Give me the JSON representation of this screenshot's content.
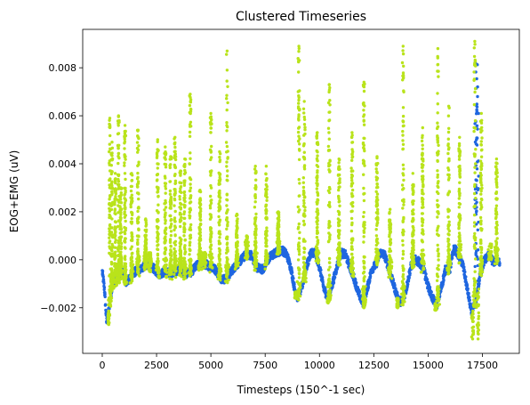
{
  "chart_data": {
    "type": "scatter",
    "title": "Clustered Timeseries",
    "xlabel": "Timesteps (150^-1 sec)",
    "ylabel": "EOG+EMG (uV)",
    "xlim": [
      -900,
      19200
    ],
    "ylim": [
      -0.0039,
      0.0096
    ],
    "xticks": [
      0,
      2500,
      5000,
      7500,
      10000,
      12500,
      15000,
      17500
    ],
    "xtick_labels": [
      "0",
      "2500",
      "5000",
      "7500",
      "10000",
      "12500",
      "15000",
      "17500"
    ],
    "yticks": [
      -0.002,
      0.0,
      0.002,
      0.004,
      0.006,
      0.008
    ],
    "ytick_labels": [
      "−0.002",
      "0.000",
      "0.002",
      "0.004",
      "0.006",
      "0.008"
    ],
    "grid": false,
    "legend": "none",
    "n_timesteps": 18300,
    "series": [
      {
        "cluster": 0,
        "color": "#1f66e0",
        "baseline": [
          [
            0,
            -0.0005
          ],
          [
            100,
            -0.0012
          ],
          [
            200,
            -0.0026
          ],
          [
            300,
            -0.0021
          ],
          [
            450,
            -0.0011
          ],
          [
            700,
            -0.0008
          ],
          [
            900,
            -0.0005
          ],
          [
            1100,
            -0.0009
          ],
          [
            1300,
            -0.0008
          ],
          [
            1500,
            -0.0005
          ],
          [
            1750,
            -0.0004
          ],
          [
            2000,
            -0.0002
          ],
          [
            2300,
            -0.0003
          ],
          [
            2600,
            -0.0006
          ],
          [
            2900,
            -0.0005
          ],
          [
            3200,
            -0.0006
          ],
          [
            3500,
            -0.0004
          ],
          [
            3800,
            -0.0006
          ],
          [
            4100,
            -0.0005
          ],
          [
            4400,
            -0.0002
          ],
          [
            4800,
            -0.0002
          ],
          [
            5200,
            -0.0004
          ],
          [
            5500,
            -0.0008
          ],
          [
            5700,
            -0.0008
          ],
          [
            6000,
            -0.0004
          ],
          [
            6300,
            -0.0001
          ],
          [
            6600,
            0.0002
          ],
          [
            6850,
            0.0002
          ],
          [
            7100,
            -0.0003
          ],
          [
            7400,
            -0.0004
          ],
          [
            7700,
            0.0001
          ],
          [
            8000,
            0.0003
          ],
          [
            8300,
            0.0004
          ],
          [
            8500,
            0.0002
          ],
          [
            8700,
            -0.0004
          ],
          [
            8850,
            -0.0012
          ],
          [
            9000,
            -0.0016
          ],
          [
            9200,
            -0.0011
          ],
          [
            9400,
            -0.0003
          ],
          [
            9600,
            0.0003
          ],
          [
            9800,
            0.0003
          ],
          [
            10000,
            -0.0003
          ],
          [
            10200,
            -0.0012
          ],
          [
            10400,
            -0.0016
          ],
          [
            10600,
            -0.001
          ],
          [
            10800,
            -0.0003
          ],
          [
            11000,
            0.0003
          ],
          [
            11200,
            0.0002
          ],
          [
            11400,
            -0.0003
          ],
          [
            11600,
            -0.0008
          ],
          [
            11800,
            -0.0014
          ],
          [
            12000,
            -0.0018
          ],
          [
            12200,
            -0.0012
          ],
          [
            12400,
            -0.0004
          ],
          [
            12600,
            -0.0002
          ],
          [
            12800,
            0.0003
          ],
          [
            13000,
            0.0002
          ],
          [
            13200,
            -0.0004
          ],
          [
            13400,
            -0.001
          ],
          [
            13600,
            -0.0016
          ],
          [
            13800,
            -0.0018
          ],
          [
            14000,
            -0.0012
          ],
          [
            14200,
            -0.0003
          ],
          [
            14400,
            0.0
          ],
          [
            14600,
            -0.0001
          ],
          [
            14800,
            -0.0004
          ],
          [
            15000,
            -0.0011
          ],
          [
            15200,
            -0.0016
          ],
          [
            15400,
            -0.0019
          ],
          [
            15600,
            -0.0012
          ],
          [
            15800,
            -0.0004
          ],
          [
            16000,
            -0.0004
          ],
          [
            16200,
            0.0005
          ],
          [
            16400,
            0.0002
          ],
          [
            16600,
            -0.0002
          ],
          [
            16800,
            -0.0012
          ],
          [
            17000,
            -0.0022
          ],
          [
            17200,
            -0.0018
          ],
          [
            17400,
            -0.0006
          ],
          [
            17600,
            0.0
          ],
          [
            17800,
            0.0002
          ],
          [
            18000,
            -0.0001
          ],
          [
            18200,
            0.0
          ],
          [
            18300,
            -0.0002
          ]
        ],
        "spikes": [
          [
            17200,
            0.0087
          ],
          [
            17250,
            0.0082
          ],
          [
            17300,
            0.0075
          ],
          [
            17230,
            0.0066
          ],
          [
            17180,
            0.006
          ]
        ]
      },
      {
        "cluster": 1,
        "color": "#b9e31b",
        "spikes": [
          [
            350,
            0.0059
          ],
          [
            450,
            0.0049
          ],
          [
            600,
            0.0036
          ],
          [
            750,
            0.006
          ],
          [
            850,
            0.003
          ],
          [
            1050,
            0.0056
          ],
          [
            1350,
            0.0036
          ],
          [
            1650,
            0.0054
          ],
          [
            2000,
            0.0017
          ],
          [
            2200,
            0.0003
          ],
          [
            2550,
            0.005
          ],
          [
            2900,
            0.0047
          ],
          [
            3150,
            0.0043
          ],
          [
            3350,
            0.0051
          ],
          [
            3600,
            0.0037
          ],
          [
            3800,
            0.0042
          ],
          [
            4050,
            0.0069
          ],
          [
            4500,
            0.0029
          ],
          [
            4700,
            0.0001
          ],
          [
            5000,
            0.0061
          ],
          [
            5400,
            0.0045
          ],
          [
            5750,
            0.0087
          ],
          [
            6200,
            0.0019
          ],
          [
            6650,
            0.001
          ],
          [
            7050,
            0.0039
          ],
          [
            7550,
            0.0039
          ],
          [
            8100,
            0.002
          ],
          [
            9050,
            0.0089
          ],
          [
            9300,
            0.0066
          ],
          [
            9900,
            0.0053
          ],
          [
            10450,
            0.0073
          ],
          [
            10900,
            0.0042
          ],
          [
            11500,
            0.0053
          ],
          [
            12050,
            0.0074
          ],
          [
            12650,
            0.0043
          ],
          [
            13250,
            0.0021
          ],
          [
            13850,
            0.0089
          ],
          [
            14300,
            0.0036
          ],
          [
            14750,
            0.0055
          ],
          [
            15450,
            0.0088
          ],
          [
            15950,
            0.0064
          ],
          [
            16450,
            0.0051
          ],
          [
            17150,
            0.0091
          ],
          [
            17450,
            0.0061
          ],
          [
            17850,
            0.0003
          ],
          [
            18150,
            0.0042
          ]
        ],
        "lows": [
          [
            300,
            -0.0027
          ],
          [
            8900,
            -0.0016
          ],
          [
            10400,
            -0.0018
          ],
          [
            12050,
            -0.002
          ],
          [
            13600,
            -0.002
          ],
          [
            15350,
            -0.0021
          ],
          [
            17050,
            -0.0033
          ],
          [
            17300,
            -0.0033
          ]
        ]
      }
    ]
  }
}
